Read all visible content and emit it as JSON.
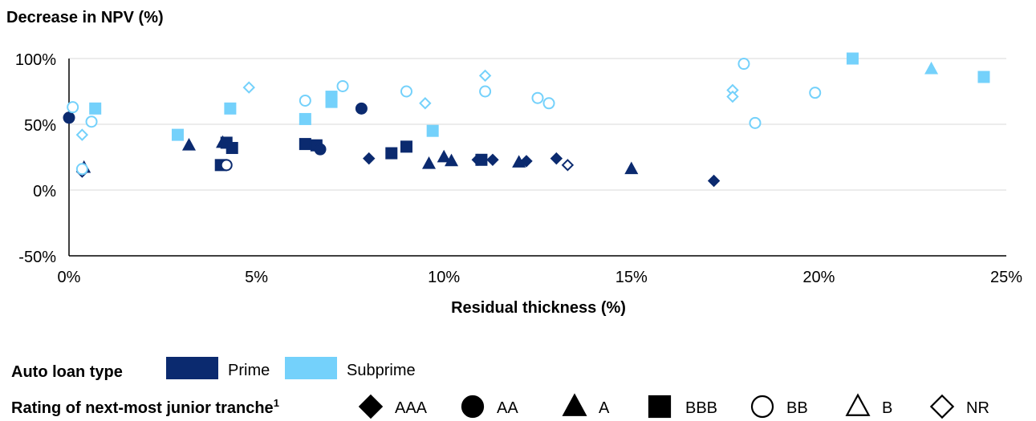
{
  "colors": {
    "prime": "#0B2A6F",
    "subprime": "#74D1FB",
    "grid": "#d9d9d9",
    "axis": "#000000"
  },
  "chart_data": {
    "type": "scatter",
    "ylabel": "Decrease in NPV (%)",
    "xlabel": "Residual thickness (%)",
    "xlim": [
      0,
      25
    ],
    "ylim": [
      -50,
      100
    ],
    "xticks": [
      0,
      5,
      10,
      15,
      20,
      25
    ],
    "yticks": [
      -50,
      0,
      50,
      100
    ],
    "xtick_labels": [
      "0%",
      "5%",
      "10%",
      "15%",
      "20%",
      "25%"
    ],
    "ytick_labels": [
      "-50%",
      "0%",
      "50%",
      "100%"
    ],
    "grid": "horizontal",
    "legend": {
      "loan_type_title": "Auto loan type",
      "loan_types": [
        {
          "key": "prime",
          "label": "Prime"
        },
        {
          "key": "subprime",
          "label": "Subprime"
        }
      ],
      "rating_title": "Rating of next-most junior tranche",
      "rating_title_sup": "1",
      "ratings": [
        {
          "key": "AAA",
          "label": "AAA",
          "shape": "diamond",
          "filled": true
        },
        {
          "key": "AA",
          "label": "AA",
          "shape": "circle",
          "filled": true
        },
        {
          "key": "A",
          "label": "A",
          "shape": "triangle",
          "filled": true
        },
        {
          "key": "BBB",
          "label": "BBB",
          "shape": "square",
          "filled": true
        },
        {
          "key": "BB",
          "label": "BB",
          "shape": "circle",
          "filled": false
        },
        {
          "key": "B",
          "label": "B",
          "shape": "triangle",
          "filled": false
        },
        {
          "key": "NR",
          "label": "NR",
          "shape": "diamond",
          "filled": false
        }
      ]
    },
    "points": [
      {
        "x": 0.0,
        "y": 55,
        "type": "prime",
        "rating": "AA"
      },
      {
        "x": 0.4,
        "y": 17,
        "type": "prime",
        "rating": "A"
      },
      {
        "x": 0.35,
        "y": 14,
        "type": "prime",
        "rating": "NR"
      },
      {
        "x": 3.2,
        "y": 34,
        "type": "prime",
        "rating": "A"
      },
      {
        "x": 4.1,
        "y": 36,
        "type": "prime",
        "rating": "A"
      },
      {
        "x": 4.05,
        "y": 19,
        "type": "prime",
        "rating": "BBB"
      },
      {
        "x": 4.2,
        "y": 36,
        "type": "prime",
        "rating": "BBB"
      },
      {
        "x": 4.35,
        "y": 32,
        "type": "prime",
        "rating": "BBB"
      },
      {
        "x": 4.2,
        "y": 19,
        "type": "prime",
        "rating": "BB"
      },
      {
        "x": 6.3,
        "y": 35,
        "type": "prime",
        "rating": "BBB"
      },
      {
        "x": 6.6,
        "y": 34,
        "type": "prime",
        "rating": "BBB"
      },
      {
        "x": 6.7,
        "y": 31,
        "type": "prime",
        "rating": "AA"
      },
      {
        "x": 7.8,
        "y": 62,
        "type": "prime",
        "rating": "AA"
      },
      {
        "x": 8.0,
        "y": 24,
        "type": "prime",
        "rating": "AAA"
      },
      {
        "x": 8.6,
        "y": 28,
        "type": "prime",
        "rating": "BBB"
      },
      {
        "x": 9.0,
        "y": 33,
        "type": "prime",
        "rating": "BBB"
      },
      {
        "x": 9.6,
        "y": 20,
        "type": "prime",
        "rating": "A"
      },
      {
        "x": 10.0,
        "y": 25,
        "type": "prime",
        "rating": "A"
      },
      {
        "x": 10.2,
        "y": 22,
        "type": "prime",
        "rating": "A"
      },
      {
        "x": 10.9,
        "y": 23,
        "type": "prime",
        "rating": "AAA"
      },
      {
        "x": 11.0,
        "y": 23,
        "type": "prime",
        "rating": "BBB"
      },
      {
        "x": 11.3,
        "y": 23,
        "type": "prime",
        "rating": "AAA"
      },
      {
        "x": 12.0,
        "y": 21,
        "type": "prime",
        "rating": "A"
      },
      {
        "x": 12.2,
        "y": 22,
        "type": "prime",
        "rating": "AAA"
      },
      {
        "x": 13.0,
        "y": 24,
        "type": "prime",
        "rating": "AAA"
      },
      {
        "x": 13.3,
        "y": 19,
        "type": "prime",
        "rating": "NR"
      },
      {
        "x": 15.0,
        "y": 16,
        "type": "prime",
        "rating": "A"
      },
      {
        "x": 17.2,
        "y": 7,
        "type": "prime",
        "rating": "AAA"
      },
      {
        "x": 0.1,
        "y": 63,
        "type": "subprime",
        "rating": "BB"
      },
      {
        "x": 0.7,
        "y": 62,
        "type": "subprime",
        "rating": "BBB"
      },
      {
        "x": 0.6,
        "y": 52,
        "type": "subprime",
        "rating": "BB"
      },
      {
        "x": 0.35,
        "y": 42,
        "type": "subprime",
        "rating": "NR"
      },
      {
        "x": 0.35,
        "y": 16,
        "type": "subprime",
        "rating": "BB"
      },
      {
        "x": 2.9,
        "y": 42,
        "type": "subprime",
        "rating": "BBB"
      },
      {
        "x": 4.3,
        "y": 62,
        "type": "subprime",
        "rating": "BBB"
      },
      {
        "x": 4.8,
        "y": 78,
        "type": "subprime",
        "rating": "NR"
      },
      {
        "x": 6.3,
        "y": 54,
        "type": "subprime",
        "rating": "BBB"
      },
      {
        "x": 6.3,
        "y": 68,
        "type": "subprime",
        "rating": "BB"
      },
      {
        "x": 7.0,
        "y": 71,
        "type": "subprime",
        "rating": "BBB"
      },
      {
        "x": 7.0,
        "y": 67,
        "type": "subprime",
        "rating": "BBB"
      },
      {
        "x": 7.3,
        "y": 79,
        "type": "subprime",
        "rating": "BB"
      },
      {
        "x": 9.0,
        "y": 75,
        "type": "subprime",
        "rating": "BB"
      },
      {
        "x": 9.5,
        "y": 66,
        "type": "subprime",
        "rating": "NR"
      },
      {
        "x": 9.7,
        "y": 45,
        "type": "subprime",
        "rating": "BBB"
      },
      {
        "x": 11.1,
        "y": 87,
        "type": "subprime",
        "rating": "NR"
      },
      {
        "x": 11.1,
        "y": 75,
        "type": "subprime",
        "rating": "BB"
      },
      {
        "x": 12.5,
        "y": 70,
        "type": "subprime",
        "rating": "BB"
      },
      {
        "x": 12.8,
        "y": 66,
        "type": "subprime",
        "rating": "BB"
      },
      {
        "x": 17.7,
        "y": 76,
        "type": "subprime",
        "rating": "NR"
      },
      {
        "x": 17.7,
        "y": 71,
        "type": "subprime",
        "rating": "NR"
      },
      {
        "x": 18.0,
        "y": 96,
        "type": "subprime",
        "rating": "BB"
      },
      {
        "x": 18.3,
        "y": 51,
        "type": "subprime",
        "rating": "BB"
      },
      {
        "x": 19.9,
        "y": 74,
        "type": "subprime",
        "rating": "BB"
      },
      {
        "x": 20.9,
        "y": 100,
        "type": "subprime",
        "rating": "BBB"
      },
      {
        "x": 23.0,
        "y": 92,
        "type": "subprime",
        "rating": "A"
      },
      {
        "x": 24.4,
        "y": 86,
        "type": "subprime",
        "rating": "BBB"
      }
    ]
  }
}
